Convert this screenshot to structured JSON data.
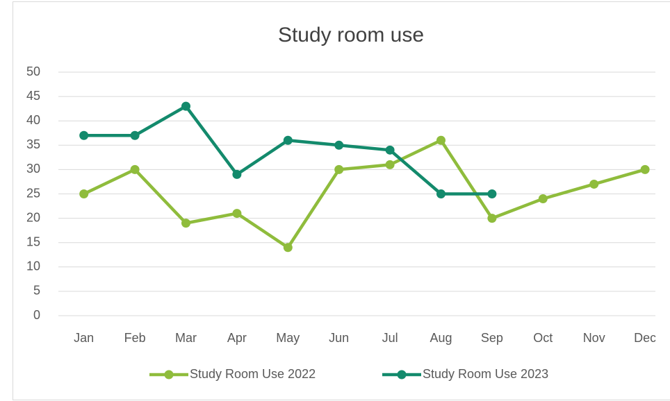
{
  "chart_data": {
    "type": "line",
    "title": "Study room use",
    "categories": [
      "Jan",
      "Feb",
      "Mar",
      "Apr",
      "May",
      "Jun",
      "Jul",
      "Aug",
      "Sep",
      "Oct",
      "Nov",
      "Dec"
    ],
    "series": [
      {
        "name": "Study Room Use 2022",
        "color": "#8fbc3c",
        "values": [
          25,
          30,
          19,
          21,
          14,
          30,
          31,
          36,
          20,
          24,
          27,
          30
        ]
      },
      {
        "name": "Study Room Use 2023",
        "color": "#138a6c",
        "values": [
          37,
          37,
          43,
          29,
          36,
          35,
          34,
          25,
          25,
          null,
          null,
          null
        ]
      }
    ],
    "ylim": [
      0,
      50
    ],
    "yticks": [
      0,
      5,
      10,
      15,
      20,
      25,
      30,
      35,
      40,
      45,
      50
    ],
    "grid": true,
    "legend": "bottom"
  }
}
